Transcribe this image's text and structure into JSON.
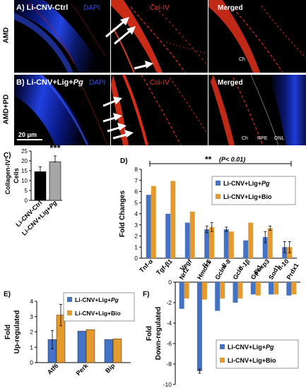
{
  "figure": {
    "microscopy": {
      "row_a": {
        "panel_label": "A) Li-CNV-Ctrl",
        "row_label": "AMD",
        "stain_dapi": "DAPI",
        "stain_col": "Col-IV",
        "merged": "Merged",
        "annot_ch": "Ch"
      },
      "row_b": {
        "panel_label_prefix": "B) Li-CNV+Lig+",
        "panel_label_italic": "Pg",
        "row_label": "AMD+PD",
        "stain_dapi": "DAPI",
        "stain_col": "Col-IV",
        "merged": "Merged",
        "annot_ch": "Ch",
        "annot_rpe": "RPE",
        "annot_onl": "ONL",
        "scale_bar": "20 μm"
      },
      "colors": {
        "dapi": "#1e3cdc",
        "col_iv": "#e0301a",
        "text_white": "#ffffff",
        "label_red": "#e8341c"
      }
    }
  },
  "chart_data": [
    {
      "id": "C",
      "panel_label": "C)",
      "type": "bar",
      "ylabel": "Collagen-IV+ Cells",
      "ylabel_main": "Collagen-IV",
      "ylabel_sup": "+",
      "ylabel_line2": "Cells",
      "categories": [
        "Li-CNV-Ctrl",
        "Li-CNV+Lig+Pg"
      ],
      "cat1_label": "Li-CNV-Ctrl",
      "cat2_prefix": "Li-CNV+Lig+",
      "cat2_italic": "Pg",
      "values": [
        14.5,
        19.5
      ],
      "errors": [
        2.5,
        3
      ],
      "colors": [
        "#000000",
        "#a6a6a6"
      ],
      "ylim": [
        0,
        25
      ],
      "yticks": [
        "0",
        "5",
        "10",
        "15",
        "20",
        "25"
      ],
      "annotation": "***"
    },
    {
      "id": "D",
      "panel_label": "D)",
      "type": "bar",
      "ylabel": "Fold Changes",
      "categories": [
        "Tnf-α",
        "Tgf-β1",
        "Vegf",
        "Il-6",
        "Il-8",
        "Il-1β",
        "Foxp3",
        "Il-10"
      ],
      "series": [
        {
          "name": "Li-CNV+Lig+Pg",
          "name_prefix": "Li-CNV+Lig+",
          "name_italic": "Pg",
          "color": "#4472c4",
          "values": [
            5.7,
            4.0,
            3.2,
            2.6,
            2.6,
            1.6,
            1.9,
            1.0
          ],
          "errors": [
            0,
            0,
            0,
            0.3,
            0.2,
            0,
            0.5,
            0.5
          ]
        },
        {
          "name": "Li-CNV+Lig+Bio",
          "color": "#e59a2e",
          "values": [
            6.5,
            6.95,
            4.2,
            2.8,
            2.4,
            3.2,
            2.7,
            1.0
          ],
          "errors": [
            0,
            0,
            0,
            0.4,
            0,
            0,
            0.2,
            0.5
          ]
        }
      ],
      "ylim": [
        0,
        8
      ],
      "yticks": [
        "0",
        "1",
        "2",
        "3",
        "4",
        "5",
        "6",
        "7",
        "8"
      ],
      "annotation_stars": "**",
      "annotation_p": "(P< 0.01)"
    },
    {
      "id": "E",
      "panel_label": "E)",
      "type": "bar",
      "ylabel": "Fold Up-regulated",
      "ylabel_line1": "Fold",
      "ylabel_line2": "Up-regulated",
      "categories": [
        "Atf6",
        "Perk",
        "Bip"
      ],
      "series": [
        {
          "name": "Li-CNV+Lig+Pg",
          "name_prefix": "Li-CNV+Lig+",
          "name_italic": "Pg",
          "color": "#4472c4",
          "values": [
            1.5,
            2.05,
            1.5
          ],
          "errors": [
            0.6,
            0,
            0
          ]
        },
        {
          "name": "Li-CNV+Lig+Bio",
          "color": "#e59a2e",
          "values": [
            3.1,
            2.15,
            1.55
          ],
          "errors": [
            0.7,
            0,
            0
          ]
        }
      ],
      "ylim": [
        0,
        4
      ],
      "yticks": [
        "0",
        "1",
        "2",
        "3",
        "4"
      ]
    },
    {
      "id": "F",
      "panel_label": "F)",
      "type": "bar",
      "ylabel": "Fold Down-regulated",
      "ylabel_line1": "Fold",
      "ylabel_line2": "Down-regulated",
      "categories": [
        "Nrf2",
        "Hmox1",
        "Gclm",
        "Gclc",
        "Gpx1",
        "Sod1",
        "Prdx1"
      ],
      "series": [
        {
          "name": "Li-CNV+Lig+Pg",
          "name_prefix": "Li-CNV+Lig+",
          "name_italic": "Pg",
          "color": "#4472c4",
          "values": [
            -2.6,
            -8.7,
            -2.8,
            -2.0,
            -1.2,
            -1.2,
            -1.3
          ],
          "errors": [
            0,
            0.2,
            0,
            0,
            0,
            0,
            0
          ]
        },
        {
          "name": "Li-CNV+Lig+Bio",
          "color": "#e59a2e",
          "values": [
            -1.6,
            -1.7,
            -1.6,
            -1.6,
            -1.3,
            -1.2,
            -1.2
          ],
          "errors": [
            0,
            0,
            0,
            0,
            0,
            0,
            0
          ]
        }
      ],
      "ylim": [
        -10,
        0
      ],
      "yticks": [
        "0",
        "-2",
        "-4",
        "-6",
        "-8",
        "-10"
      ]
    }
  ]
}
